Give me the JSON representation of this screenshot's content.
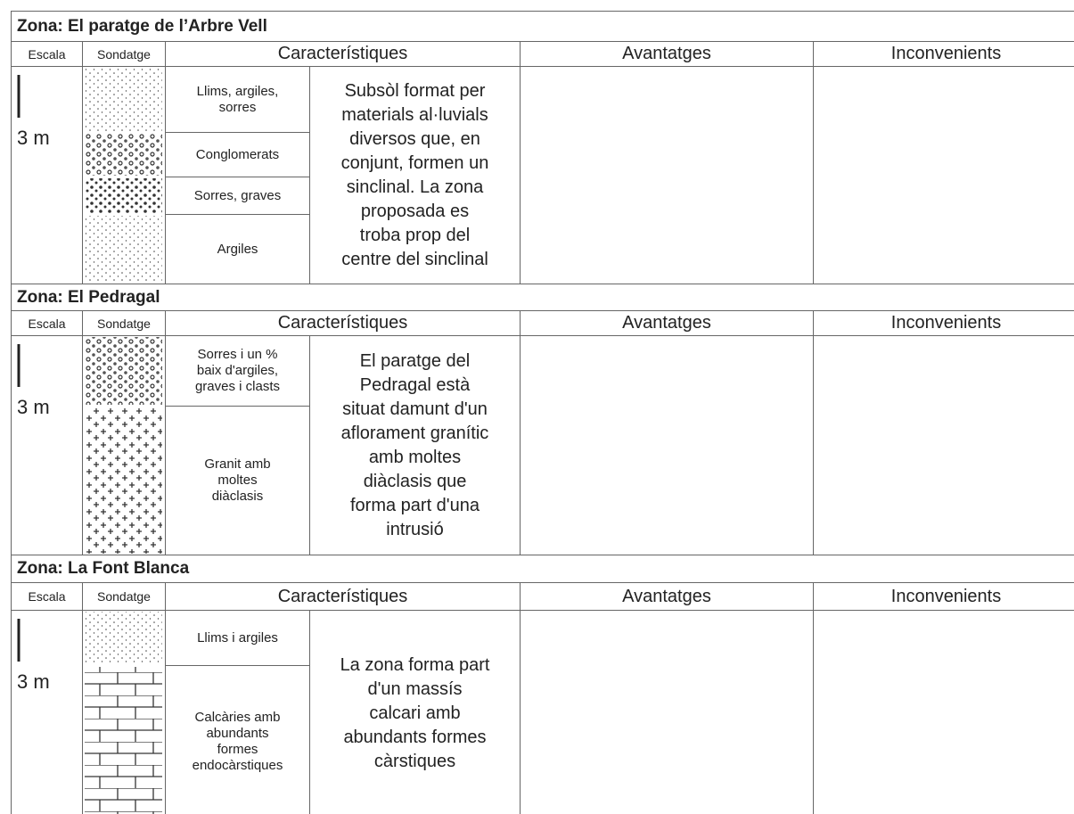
{
  "zones": [
    {
      "title": "Zona: El paratge de l’Arbre Vell",
      "headers": [
        "Escala",
        "Sondatge",
        "Característiques",
        "Avantatges",
        "Inconvenients"
      ],
      "scale": "3 m",
      "layers": [
        "Llims, argiles,\nsorres",
        "Conglomerats",
        "Sorres, graves",
        "Argiles"
      ],
      "description": [
        "Subsòl format per",
        "materials al·luvials",
        "diversos que, en",
        "conjunt, formen un",
        "sinclinal. La zona",
        "proposada es",
        "troba prop del",
        "centre del sinclinal"
      ]
    },
    {
      "title": "Zona: El Pedragal",
      "headers": [
        "Escala",
        "Sondatge",
        "Característiques",
        "Avantatges",
        "Inconvenients"
      ],
      "scale": "3 m",
      "layers": [
        "Sorres i un %\nbaix d'argiles,\ngraves i clasts",
        "Granit amb\nmoltes\ndiàclasis"
      ],
      "description": [
        "El paratge del",
        "Pedragal està",
        "situat damunt d'un",
        "aflorament granític",
        "amb moltes",
        "diàclasis que",
        "forma part d'una",
        "intrusió"
      ]
    },
    {
      "title": "Zona: La Font Blanca",
      "headers": [
        "Escala",
        "Sondatge",
        "Característiques",
        "Avantatges",
        "Inconvenients"
      ],
      "scale": "3 m",
      "layers": [
        "Llims i argiles",
        "Calcàries amb\nabundants\nformes\nendocàrstiques"
      ],
      "description": [
        "La zona forma part",
        "d'un massís",
        "calcari amb",
        "abundants formes",
        "càrstiques"
      ]
    }
  ]
}
